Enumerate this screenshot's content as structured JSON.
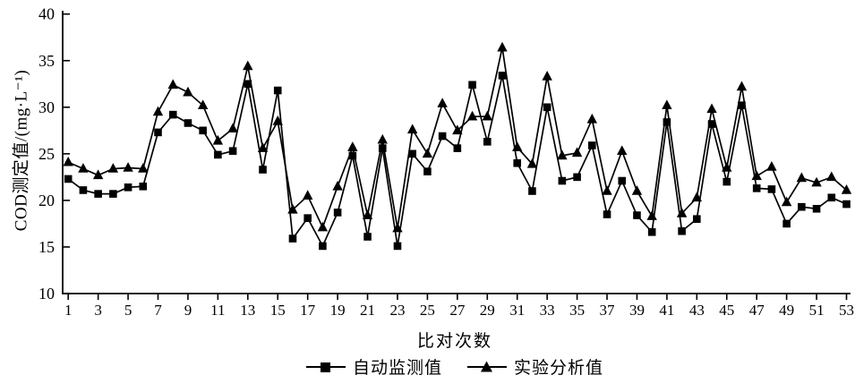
{
  "chart_data": {
    "type": "line",
    "title": "",
    "xlabel": "比对次数",
    "ylabel": "COD测定值/(mg·L⁻¹)",
    "xlim": [
      1,
      53
    ],
    "ylim": [
      10,
      40
    ],
    "grid": false,
    "background": "#ffffff",
    "line_color": "#000000",
    "legend_position": "bottom-center",
    "y_ticks": [
      10,
      15,
      20,
      25,
      30,
      35,
      40
    ],
    "x_ticks": [
      1,
      3,
      5,
      7,
      9,
      11,
      13,
      15,
      17,
      19,
      21,
      23,
      25,
      27,
      29,
      31,
      33,
      35,
      37,
      39,
      41,
      43,
      45,
      47,
      49,
      51,
      53
    ],
    "x": [
      1,
      2,
      3,
      4,
      5,
      6,
      7,
      8,
      9,
      10,
      11,
      12,
      13,
      14,
      15,
      16,
      17,
      18,
      19,
      20,
      21,
      22,
      23,
      24,
      25,
      26,
      27,
      28,
      29,
      30,
      31,
      32,
      33,
      34,
      35,
      36,
      37,
      38,
      39,
      40,
      41,
      42,
      43,
      44,
      45,
      46,
      47,
      48,
      49,
      50,
      51,
      52,
      53
    ],
    "series": [
      {
        "name": "自动监测值",
        "marker": "square",
        "values": [
          22.3,
          21.1,
          20.7,
          20.7,
          21.4,
          21.5,
          27.3,
          29.2,
          28.3,
          27.5,
          24.9,
          25.3,
          32.5,
          23.3,
          31.8,
          15.9,
          18.1,
          15.1,
          18.7,
          24.8,
          16.1,
          25.6,
          15.1,
          25.0,
          23.1,
          26.9,
          25.6,
          32.4,
          26.3,
          33.4,
          24.0,
          21.0,
          30.0,
          22.1,
          22.5,
          25.9,
          18.5,
          22.1,
          18.4,
          16.6,
          28.4,
          16.7,
          18.0,
          28.2,
          22.0,
          30.2,
          21.3,
          21.2,
          17.5,
          19.3,
          19.1,
          20.3,
          19.6
        ]
      },
      {
        "name": "实验分析值",
        "marker": "triangle",
        "values": [
          24.1,
          23.4,
          22.7,
          23.4,
          23.5,
          23.4,
          29.5,
          32.4,
          31.6,
          30.2,
          26.4,
          27.7,
          34.4,
          25.6,
          28.5,
          19.0,
          20.5,
          17.1,
          21.5,
          25.7,
          18.4,
          26.5,
          17.0,
          27.6,
          25.0,
          30.4,
          27.5,
          29.0,
          29.0,
          36.4,
          25.7,
          23.9,
          33.3,
          24.8,
          25.1,
          28.7,
          21.0,
          25.3,
          21.0,
          18.3,
          30.2,
          18.6,
          20.3,
          29.8,
          23.5,
          32.2,
          22.6,
          23.6,
          19.8,
          22.4,
          21.9,
          22.5,
          21.1
        ]
      }
    ]
  }
}
